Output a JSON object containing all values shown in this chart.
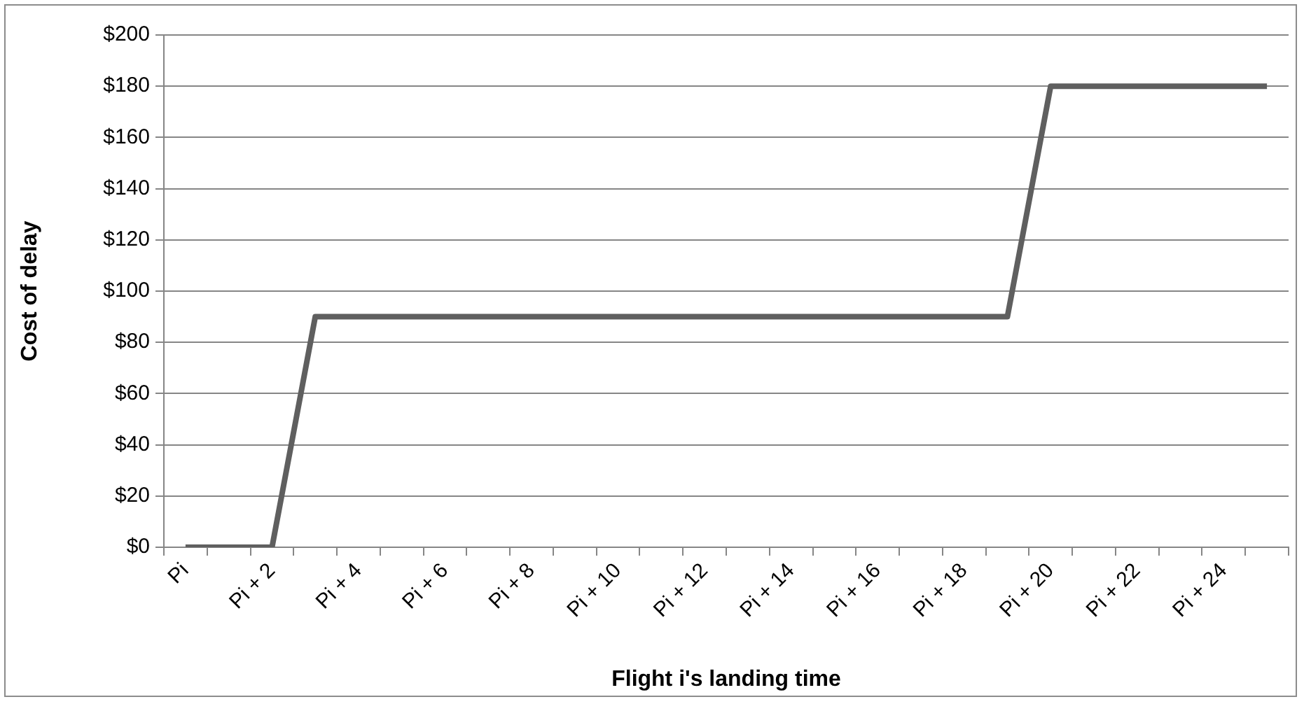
{
  "chart_data": {
    "type": "line",
    "xlabel": "Flight i's landing time",
    "ylabel": "Cost of delay",
    "categories": [
      "Pi",
      null,
      "Pi + 2",
      null,
      "Pi + 4",
      null,
      "Pi + 6",
      null,
      "Pi + 8",
      null,
      "Pi + 10",
      null,
      "Pi + 12",
      null,
      "Pi + 14",
      null,
      "Pi + 16",
      null,
      "Pi + 18",
      null,
      "Pi + 20",
      null,
      "Pi + 22",
      null,
      "Pi + 24",
      null
    ],
    "series": [
      {
        "color": "#5f5f5f",
        "values": [
          0,
          0,
          0,
          90,
          90,
          90,
          90,
          90,
          90,
          90,
          90,
          90,
          90,
          90,
          90,
          90,
          90,
          90,
          90,
          90,
          180,
          180,
          180,
          180,
          180,
          180
        ]
      }
    ],
    "ylim": [
      0,
      200
    ],
    "yticks": [
      {
        "value": 0,
        "label": "$0"
      },
      {
        "value": 20,
        "label": "$20"
      },
      {
        "value": 40,
        "label": "$40"
      },
      {
        "value": 60,
        "label": "$60"
      },
      {
        "value": 80,
        "label": "$80"
      },
      {
        "value": 100,
        "label": "$100"
      },
      {
        "value": 120,
        "label": "$120"
      },
      {
        "value": 140,
        "label": "$140"
      },
      {
        "value": 160,
        "label": "$160"
      },
      {
        "value": 180,
        "label": "$180"
      },
      {
        "value": 200,
        "label": "$200"
      }
    ],
    "grid": "y",
    "legend": false,
    "marker": "none",
    "line_style": "solid"
  }
}
